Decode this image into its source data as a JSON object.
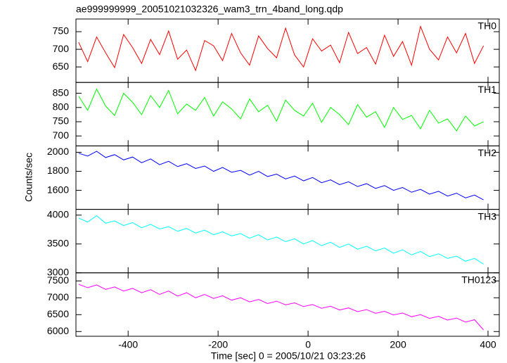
{
  "chart_data": {
    "type": "line",
    "title": "ae999999999_20051021032326_wam3_trn_4band_long.qdp",
    "x_label": "Time [sec] 0 = 2005/10/21 03:23:26",
    "y_label": "Counts/sec",
    "xlim": [
      -516,
      425
    ],
    "xticks": [
      -400,
      -200,
      0,
      200,
      400
    ],
    "x": [
      -510,
      -490,
      -470,
      -450,
      -430,
      -410,
      -390,
      -370,
      -350,
      -330,
      -310,
      -290,
      -270,
      -250,
      -230,
      -210,
      -190,
      -170,
      -150,
      -130,
      -110,
      -90,
      -70,
      -50,
      -30,
      -10,
      10,
      30,
      50,
      70,
      90,
      110,
      130,
      150,
      170,
      190,
      210,
      230,
      250,
      270,
      290,
      310,
      330,
      350,
      370,
      390
    ],
    "series": [
      {
        "name": "TH0",
        "color": "#ff0000",
        "ylim": [
          606,
          786
        ],
        "yticks": [
          650,
          700,
          750
        ],
        "values": [
          720,
          665,
          735,
          690,
          648,
          742,
          705,
          660,
          728,
          685,
          752,
          672,
          698,
          640,
          725,
          710,
          668,
          745,
          690,
          655,
          738,
          702,
          676,
          760,
          684,
          650,
          730,
          695,
          712,
          662,
          748,
          688,
          705,
          658,
          740,
          680,
          722,
          655,
          765,
          700,
          670,
          735,
          690,
          745,
          660,
          710
        ]
      },
      {
        "name": "TH1",
        "color": "#00ff00",
        "ylim": [
          665,
          888
        ],
        "yticks": [
          700,
          750,
          800,
          850
        ],
        "values": [
          840,
          790,
          865,
          805,
          772,
          850,
          818,
          775,
          842,
          800,
          860,
          778,
          812,
          790,
          835,
          770,
          820,
          795,
          760,
          830,
          785,
          808,
          752,
          826,
          790,
          770,
          815,
          748,
          800,
          775,
          740,
          810,
          766,
          785,
          730,
          800,
          758,
          772,
          725,
          790,
          745,
          760,
          718,
          770,
          735,
          750
        ]
      },
      {
        "name": "TH2",
        "color": "#0000ff",
        "ylim": [
          1400,
          2067
        ],
        "yticks": [
          1600,
          1800,
          2000
        ],
        "values": [
          1990,
          1960,
          2010,
          1945,
          1975,
          1920,
          1950,
          1890,
          1930,
          1870,
          1905,
          1850,
          1880,
          1830,
          1855,
          1800,
          1840,
          1790,
          1810,
          1760,
          1800,
          1745,
          1770,
          1720,
          1750,
          1700,
          1735,
          1680,
          1710,
          1660,
          1690,
          1640,
          1670,
          1620,
          1650,
          1600,
          1630,
          1580,
          1610,
          1560,
          1590,
          1540,
          1570,
          1520,
          1550,
          1500
        ]
      },
      {
        "name": "TH3",
        "color": "#00ffff",
        "ylim": [
          3000,
          4100
        ],
        "yticks": [
          3000,
          3500,
          4000
        ],
        "values": [
          3950,
          3880,
          3990,
          3860,
          3900,
          3820,
          3870,
          3780,
          3840,
          3760,
          3800,
          3720,
          3770,
          3690,
          3740,
          3660,
          3710,
          3640,
          3680,
          3600,
          3660,
          3570,
          3620,
          3540,
          3590,
          3500,
          3560,
          3470,
          3530,
          3440,
          3500,
          3410,
          3460,
          3380,
          3430,
          3340,
          3400,
          3310,
          3370,
          3280,
          3330,
          3250,
          3290,
          3200,
          3250,
          3150
        ]
      },
      {
        "name": "TH0123",
        "color": "#ff00ff",
        "ylim": [
          5860,
          7740
        ],
        "yticks": [
          6000,
          6500,
          7000,
          7500
        ],
        "values": [
          7400,
          7300,
          7380,
          7250,
          7320,
          7200,
          7280,
          7150,
          7240,
          7100,
          7200,
          7050,
          7150,
          7000,
          7100,
          6980,
          7060,
          6930,
          7000,
          6880,
          6950,
          6830,
          6900,
          6790,
          6850,
          6740,
          6800,
          6690,
          6750,
          6640,
          6700,
          6590,
          6650,
          6540,
          6600,
          6490,
          6550,
          6440,
          6500,
          6390,
          6450,
          6340,
          6400,
          6280,
          6350,
          6050
        ]
      }
    ]
  }
}
